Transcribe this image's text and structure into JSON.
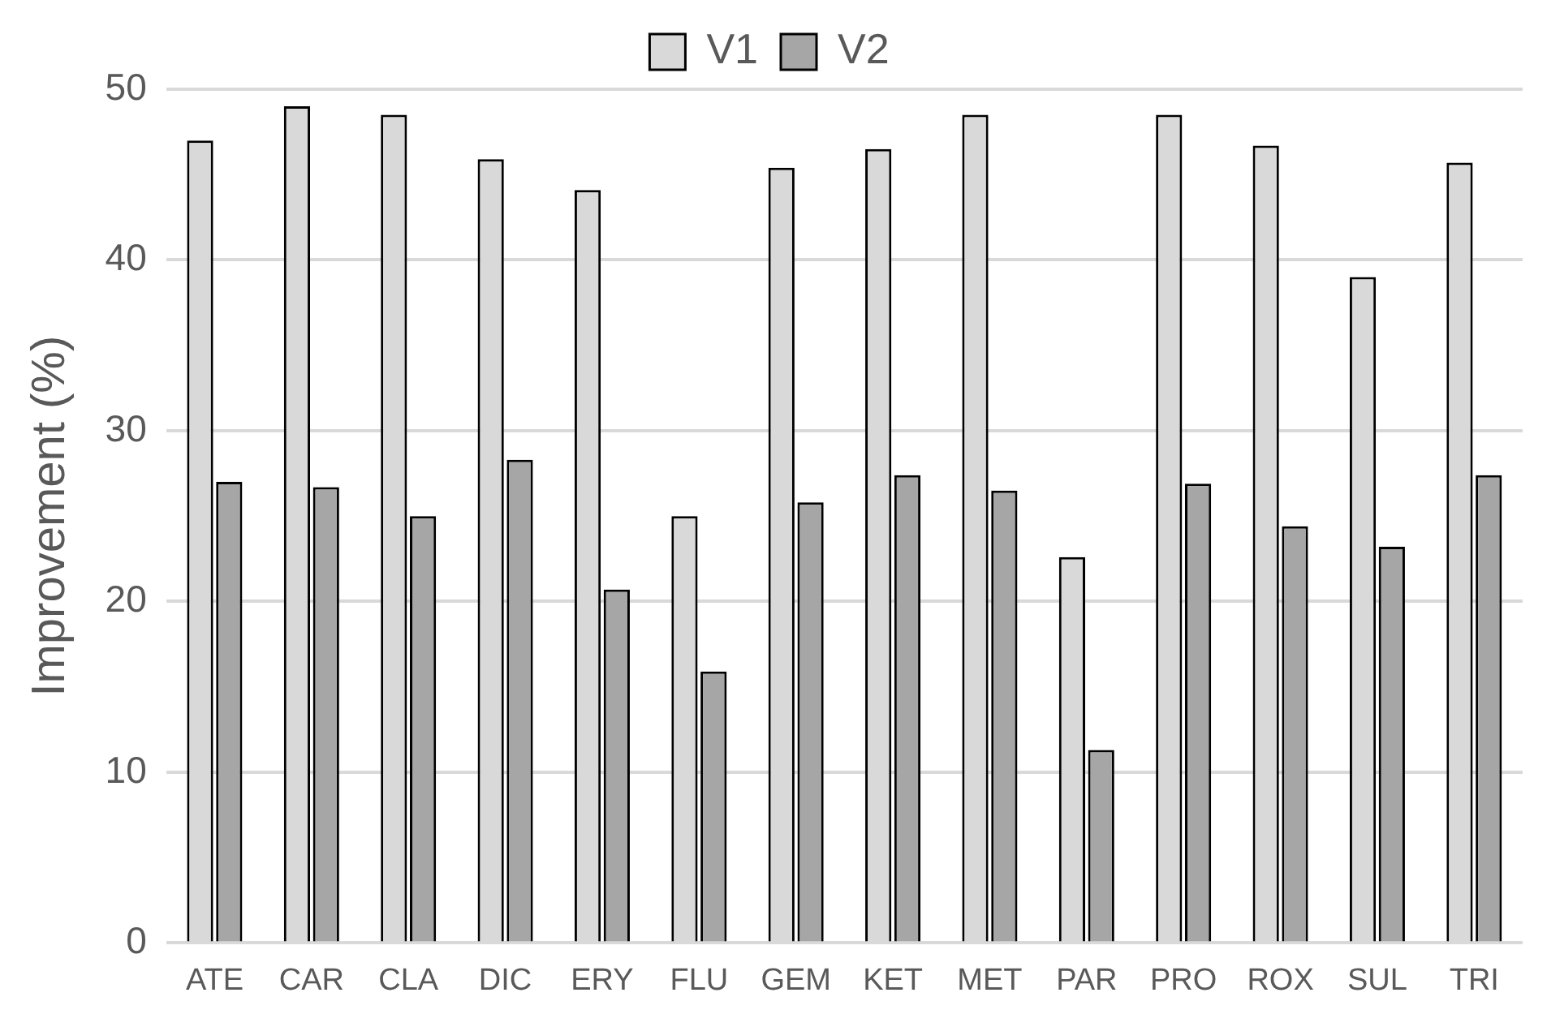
{
  "chart_data": {
    "type": "bar",
    "ylabel": "Improvement (%)",
    "categories": [
      "ATE",
      "CAR",
      "CLA",
      "DIC",
      "ERY",
      "FLU",
      "GEM",
      "KET",
      "MET",
      "PAR",
      "PRO",
      "ROX",
      "SUL",
      "TRI"
    ],
    "series": [
      {
        "name": "V1",
        "color": "#d9d9d9",
        "values": [
          47,
          49,
          48.5,
          45.9,
          44.1,
          25,
          45.4,
          46.5,
          48.5,
          22.6,
          48.5,
          46.7,
          39,
          45.7
        ]
      },
      {
        "name": "V2",
        "color": "#a6a6a6",
        "values": [
          27,
          26.7,
          25,
          28.3,
          20.7,
          15.9,
          25.8,
          27.4,
          26.5,
          11.3,
          26.9,
          24.4,
          23.2,
          27.4
        ]
      }
    ],
    "ylim": [
      0,
      50
    ],
    "yticks": [
      0,
      10,
      20,
      30,
      40,
      50
    ],
    "grid": "y",
    "legend": "top"
  }
}
